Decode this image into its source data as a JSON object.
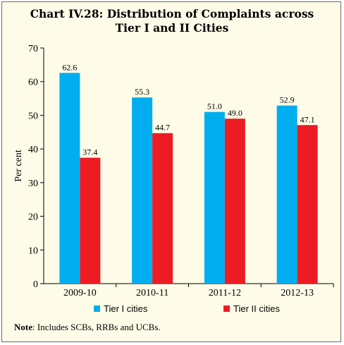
{
  "title_line1": "Chart IV.28: Distribution of Complaints across",
  "title_line2": "Tier I and II Cities",
  "note_label": "Note",
  "note_text": ": Includes SCBs, RRBs and UCBs.",
  "chart_data": {
    "type": "bar",
    "categories": [
      "2009-10",
      "2010-11",
      "2011-12",
      "2012-13"
    ],
    "series": [
      {
        "name": "Tier I cities",
        "values": [
          62.6,
          55.3,
          51.0,
          52.9
        ],
        "color": "#00aeef",
        "labels": [
          "62.6",
          "55.3",
          "51.0",
          "52.9"
        ]
      },
      {
        "name": "Tier II cities",
        "values": [
          37.4,
          44.7,
          49.0,
          47.1
        ],
        "color": "#ed1c24",
        "labels": [
          "37.4",
          "44.7",
          "49.0",
          "47.1"
        ]
      }
    ],
    "ylabel": "Per cent",
    "ylim": [
      0,
      70
    ],
    "yticks": [
      0,
      10,
      20,
      30,
      40,
      50,
      60,
      70
    ],
    "grid": false,
    "legend_position": "bottom"
  }
}
